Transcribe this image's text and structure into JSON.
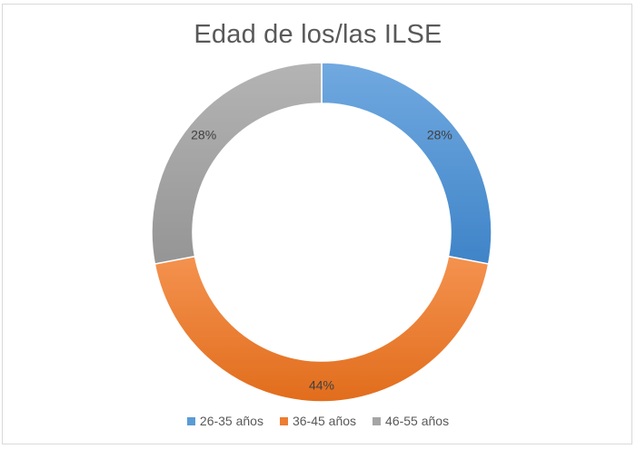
{
  "chart_data": {
    "type": "pie",
    "variant": "doughnut",
    "title": "Edad de los/las ILSE",
    "categories": [
      "26-35 años",
      "36-45 años",
      "46-55 años"
    ],
    "values": [
      28,
      44,
      28
    ],
    "data_labels": [
      "28%",
      "44%",
      "28%"
    ],
    "colors": [
      "#5b9bd5",
      "#ed7d31",
      "#a5a5a5"
    ],
    "legend_position": "bottom"
  }
}
